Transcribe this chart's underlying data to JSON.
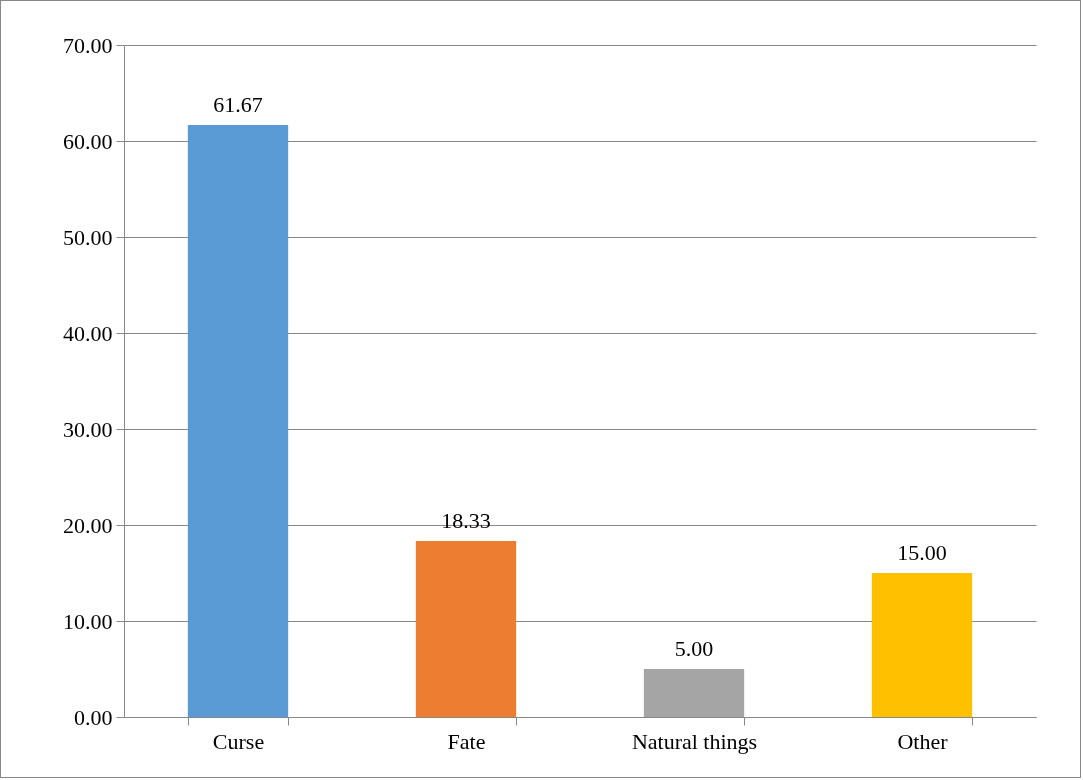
{
  "chart_data": {
    "type": "bar",
    "categories": [
      "Curse",
      "Fate",
      "Natural things",
      "Other"
    ],
    "values": [
      61.67,
      18.33,
      5,
      15
    ],
    "value_labels": [
      "61.67",
      "18.33",
      "5.00",
      "15.00"
    ],
    "colors": [
      "#5b9bd5",
      "#ed7d31",
      "#a5a5a5",
      "#ffc000"
    ],
    "ylim": [
      0,
      70
    ],
    "yticks": [
      {
        "value": 0,
        "label": "0.00"
      },
      {
        "value": 10,
        "label": "10.00"
      },
      {
        "value": 20,
        "label": "20.00"
      },
      {
        "value": 30,
        "label": "30.00"
      },
      {
        "value": 40,
        "label": "40.00"
      },
      {
        "value": 50,
        "label": "50.00"
      },
      {
        "value": 60,
        "label": "60.00"
      },
      {
        "value": 70,
        "label": "70.00"
      }
    ],
    "grid": "y",
    "legend": false
  }
}
